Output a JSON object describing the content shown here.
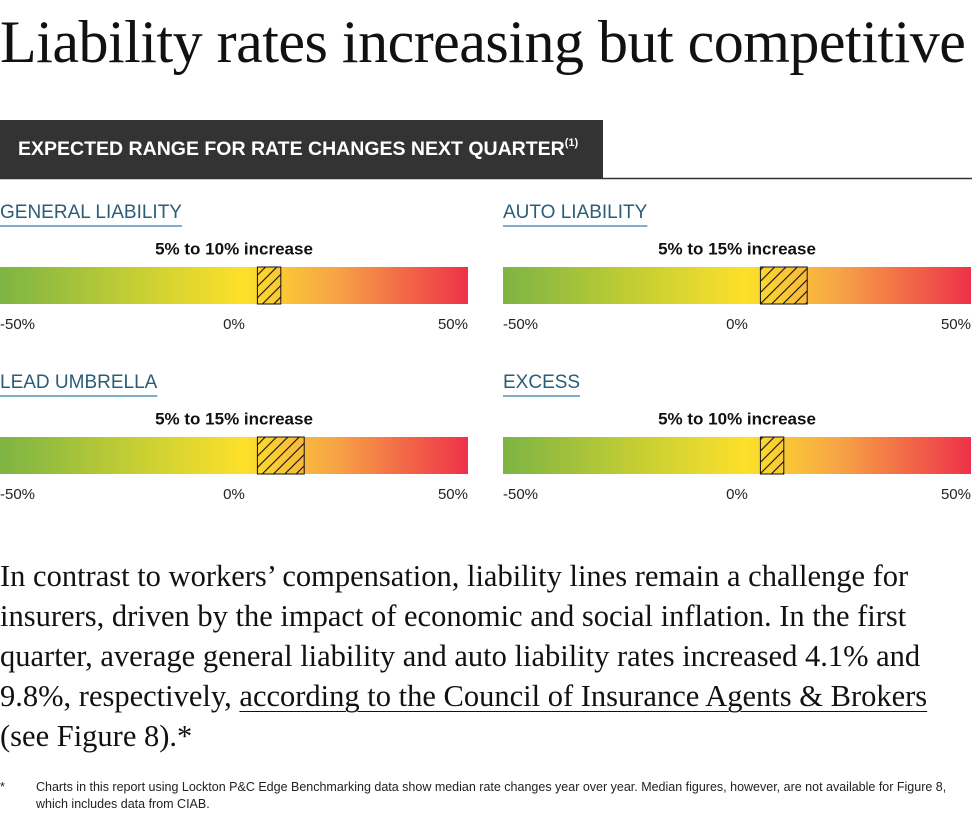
{
  "title": "Liability rates increasing but competitive",
  "header": {
    "text": "EXPECTED RANGE FOR RATE CHANGES NEXT QUARTER",
    "note": "(1)"
  },
  "chart_data": [
    {
      "type": "range",
      "title": "GENERAL LIABILITY",
      "annotation": "5% to 10% increase",
      "range": [
        5,
        10
      ],
      "xlim": [
        -50,
        50
      ],
      "xticks": [
        {
          "value": -50,
          "label": "-50%"
        },
        {
          "value": 0,
          "label": "0%"
        },
        {
          "value": 50,
          "label": "50%"
        }
      ]
    },
    {
      "type": "range",
      "title": "AUTO LIABILITY",
      "annotation": "5% to 15% increase",
      "range": [
        5,
        15
      ],
      "xlim": [
        -50,
        50
      ],
      "xticks": [
        {
          "value": -50,
          "label": "-50%"
        },
        {
          "value": 0,
          "label": "0%"
        },
        {
          "value": 50,
          "label": "50%"
        }
      ]
    },
    {
      "type": "range",
      "title": "LEAD UMBRELLA",
      "annotation": "5% to 15% increase",
      "range": [
        5,
        15
      ],
      "xlim": [
        -50,
        50
      ],
      "xticks": [
        {
          "value": -50,
          "label": "-50%"
        },
        {
          "value": 0,
          "label": "0%"
        },
        {
          "value": 50,
          "label": "50%"
        }
      ]
    },
    {
      "type": "range",
      "title": "EXCESS",
      "annotation": "5% to 10% increase",
      "range": [
        5,
        10
      ],
      "xlim": [
        -50,
        50
      ],
      "xticks": [
        {
          "value": -50,
          "label": "-50%"
        },
        {
          "value": 0,
          "label": "0%"
        },
        {
          "value": 50,
          "label": "50%"
        }
      ]
    }
  ],
  "body": {
    "before": "In contrast to workers’ compensation, liability lines remain a challenge for insurers, driven by the impact of economic and social inflation. In the first quarter, average general liability and auto liability rates increased 4.1% and 9.8%, respectively,",
    "link": "according to the Council of Insurance Agents & Brokers",
    "after": "(see Figure 8).*"
  },
  "footnote": {
    "mark": "*",
    "text": "Charts in this report using Lockton P&C Edge Benchmarking data show median rate changes year over year. Median figures, however, are not available for Figure 8, which includes data from CIAB."
  }
}
